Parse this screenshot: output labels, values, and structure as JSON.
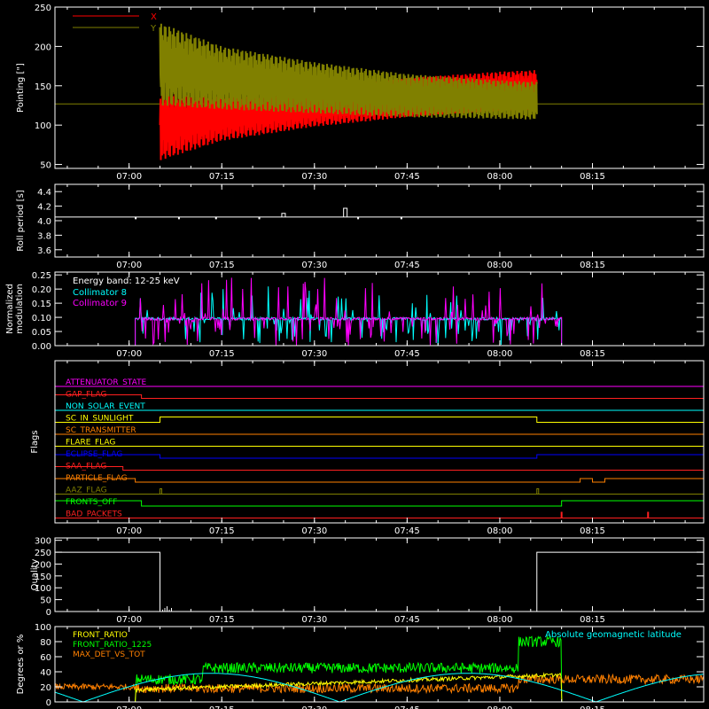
{
  "chart_data": [
    {
      "panel": "pointing",
      "type": "line",
      "ylabel": "Pointing [\"]",
      "ylim": [
        45,
        250
      ],
      "yticks": [
        50,
        100,
        150,
        200,
        250
      ],
      "xlim": [
        "06:48",
        "08:33"
      ],
      "xticks": [
        "07:00",
        "07:15",
        "07:30",
        "07:45",
        "08:00",
        "08:15"
      ],
      "legend": [
        {
          "name": "X",
          "color": "#ff0000"
        },
        {
          "name": "Y",
          "color": "#808000"
        }
      ],
      "series": [
        {
          "name": "X",
          "color": "#ff0000",
          "baseline": 127,
          "start": "07:05",
          "end": "08:06",
          "envelope_time": [
            "07:05",
            "07:15",
            "07:30",
            "07:45",
            "08:00",
            "08:06"
          ],
          "upper": [
            145,
            142,
            145,
            160,
            168,
            170
          ],
          "lower": [
            55,
            80,
            98,
            110,
            118,
            120
          ]
        },
        {
          "name": "Y",
          "color": "#808000",
          "baseline": 127,
          "start": "07:05",
          "end": "08:06",
          "envelope_time": [
            "07:05",
            "07:15",
            "07:30",
            "07:45",
            "08:00",
            "08:06"
          ],
          "upper": [
            230,
            200,
            180,
            165,
            157,
            155
          ],
          "lower": [
            125,
            120,
            115,
            110,
            108,
            107
          ]
        }
      ]
    },
    {
      "panel": "roll",
      "type": "line",
      "ylabel": "Roll period [s]",
      "ylim": [
        3.5,
        4.5
      ],
      "yticks": [
        "3.6",
        "3.8",
        "4.0",
        "4.2",
        "4.4"
      ],
      "baseline": 4.05,
      "spikes": [
        {
          "t": "07:25",
          "v": 4.1
        },
        {
          "t": "07:35",
          "v": 4.17
        }
      ]
    },
    {
      "panel": "modulation",
      "type": "line",
      "ylabel": "Normalized modulation",
      "ylim": [
        0,
        0.26
      ],
      "yticks": [
        "0.00",
        "0.05",
        "0.10",
        "0.15",
        "0.20",
        "0.25"
      ],
      "annotation": "Energy band: 12-25 keV",
      "series": [
        {
          "name": "Collimator 8",
          "color": "#00ffff"
        },
        {
          "name": "Collimator 9",
          "color": "#ff00ff"
        }
      ],
      "active_range": [
        "07:01",
        "08:10"
      ],
      "typical": 0.095
    },
    {
      "panel": "flags",
      "type": "line",
      "ylabel": "Flags",
      "flags": [
        {
          "name": "ATTENUATOR_STATE",
          "color": "#ff00ff"
        },
        {
          "name": "GAP_FLAG",
          "color": "#ff2020"
        },
        {
          "name": "NON_SOLAR_EVENT",
          "color": "#00ffff"
        },
        {
          "name": "SC_IN_SUNLIGHT",
          "color": "#ffff00"
        },
        {
          "name": "SC_TRANSMITTER",
          "color": "#ff8000"
        },
        {
          "name": "FLARE_FLAG",
          "color": "#ffff00"
        },
        {
          "name": "ECLIPSE_FLAG",
          "color": "#0000ff"
        },
        {
          "name": "SAA_FLAG",
          "color": "#ff2020"
        },
        {
          "name": "PARTICLE_FLAG",
          "color": "#ff8000"
        },
        {
          "name": "AAZ_FLAG",
          "color": "#808000"
        },
        {
          "name": "FRONTS_OFF",
          "color": "#00ff00"
        },
        {
          "name": "BAD_PACKETS",
          "color": "#ff2020"
        }
      ]
    },
    {
      "panel": "quality",
      "type": "line",
      "ylabel": "Quality",
      "ylim": [
        0,
        310
      ],
      "yticks": [
        0,
        50,
        100,
        150,
        200,
        250,
        300
      ],
      "segments": [
        {
          "from": "06:48",
          "to": "07:05",
          "v": 250
        },
        {
          "from": "07:05",
          "to": "08:06",
          "v": 0
        },
        {
          "from": "08:06",
          "to": "08:33",
          "v": 250
        }
      ]
    },
    {
      "panel": "ratios",
      "type": "line",
      "ylabel": "Degrees or %",
      "ylim": [
        0,
        100
      ],
      "yticks": [
        0,
        20,
        40,
        60,
        80,
        100
      ],
      "series": [
        {
          "name": "FRONT_RATIO",
          "color": "#ffff00"
        },
        {
          "name": "FRONT_RATIO_1225",
          "color": "#00ff00"
        },
        {
          "name": "MAX_DET_VS_TOT",
          "color": "#ff8000"
        },
        {
          "name": "Absolute geomagnetic latitude",
          "color": "#00ffff"
        }
      ]
    }
  ]
}
